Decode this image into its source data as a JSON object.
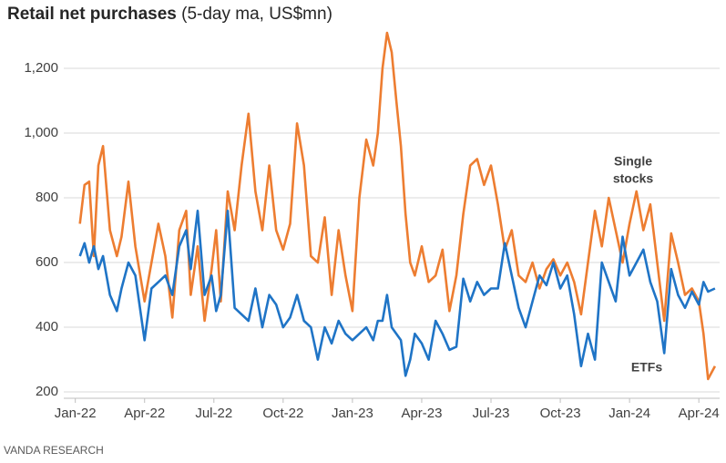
{
  "chart_data": {
    "type": "line",
    "title": "Retail net purchases",
    "subtitle": "(5-day ma, US$mn)",
    "source": "VANDA RESEARCH",
    "xlim": [
      -0.5,
      27.9
    ],
    "xticks": [
      {
        "value": 0,
        "label": "Jan-22"
      },
      {
        "value": 3,
        "label": "Apr-22"
      },
      {
        "value": 6,
        "label": "Jul-22"
      },
      {
        "value": 9,
        "label": "Oct-22"
      },
      {
        "value": 12,
        "label": "Jan-23"
      },
      {
        "value": 15,
        "label": "Apr-23"
      },
      {
        "value": 18,
        "label": "Jul-23"
      },
      {
        "value": 21,
        "label": "Oct-23"
      },
      {
        "value": 24,
        "label": "Jan-24"
      },
      {
        "value": 27,
        "label": "Apr-24"
      }
    ],
    "ylim": [
      172,
      1341
    ],
    "yticks": [
      200,
      400,
      600,
      800,
      {
        "value": 1000,
        "label": "1,000"
      },
      {
        "value": 1200,
        "label": "1,200"
      }
    ],
    "grid": true,
    "x": [
      0.2,
      0.4,
      0.6,
      0.8,
      1.0,
      1.2,
      1.5,
      1.8,
      2.0,
      2.3,
      2.6,
      3.0,
      3.3,
      3.6,
      3.9,
      4.2,
      4.5,
      4.8,
      5.0,
      5.3,
      5.6,
      5.9,
      6.1,
      6.3,
      6.6,
      6.9,
      7.2,
      7.5,
      7.8,
      8.1,
      8.4,
      8.7,
      9.0,
      9.3,
      9.6,
      9.9,
      10.2,
      10.5,
      10.8,
      11.1,
      11.4,
      11.7,
      12.0,
      12.3,
      12.6,
      12.9,
      13.1,
      13.3,
      13.5,
      13.7,
      13.9,
      14.1,
      14.3,
      14.5,
      14.7,
      15.0,
      15.3,
      15.6,
      15.9,
      16.2,
      16.5,
      16.8,
      17.1,
      17.4,
      17.7,
      18.0,
      18.3,
      18.6,
      18.9,
      19.2,
      19.5,
      19.8,
      20.1,
      20.4,
      20.7,
      21.0,
      21.3,
      21.6,
      21.9,
      22.2,
      22.5,
      22.8,
      23.1,
      23.4,
      23.7,
      24.0,
      24.3,
      24.6,
      24.9,
      25.2,
      25.5,
      25.8,
      26.1,
      26.4,
      26.7,
      27.0,
      27.2,
      27.4,
      27.7
    ],
    "series": [
      {
        "name": "Single stocks",
        "color": "#ed7d31",
        "values": [
          720,
          840,
          850,
          620,
          900,
          960,
          700,
          620,
          680,
          850,
          650,
          480,
          600,
          720,
          620,
          430,
          700,
          760,
          500,
          650,
          420,
          580,
          700,
          480,
          820,
          700,
          900,
          1060,
          820,
          700,
          900,
          700,
          640,
          720,
          1030,
          900,
          620,
          600,
          740,
          500,
          700,
          560,
          450,
          800,
          980,
          900,
          1000,
          1200,
          1310,
          1250,
          1100,
          960,
          750,
          600,
          560,
          650,
          540,
          560,
          640,
          450,
          560,
          750,
          900,
          920,
          840,
          900,
          780,
          640,
          700,
          560,
          540,
          600,
          520,
          580,
          610,
          560,
          600,
          540,
          440,
          600,
          760,
          650,
          800,
          700,
          600,
          720,
          820,
          700,
          780,
          600,
          420,
          690,
          600,
          500,
          520,
          480,
          380,
          240,
          280
        ]
      },
      {
        "name": "ETFs",
        "color": "#1f74c6",
        "values": [
          620,
          660,
          600,
          650,
          580,
          620,
          500,
          450,
          520,
          600,
          560,
          360,
          520,
          540,
          560,
          500,
          650,
          700,
          580,
          760,
          500,
          560,
          450,
          500,
          760,
          460,
          440,
          420,
          520,
          400,
          500,
          470,
          400,
          430,
          500,
          420,
          400,
          300,
          400,
          350,
          420,
          380,
          360,
          380,
          400,
          360,
          420,
          420,
          500,
          400,
          380,
          360,
          250,
          300,
          380,
          350,
          300,
          420,
          380,
          330,
          340,
          550,
          480,
          540,
          500,
          520,
          520,
          660,
          560,
          460,
          400,
          480,
          560,
          530,
          600,
          520,
          560,
          440,
          280,
          380,
          300,
          600,
          540,
          480,
          680,
          560,
          600,
          640,
          540,
          480,
          320,
          580,
          500,
          460,
          510,
          470,
          540,
          510,
          520
        ]
      }
    ],
    "annotations": [
      {
        "lines": [
          "Single",
          "stocks"
        ],
        "color": "#ed7d31"
      },
      {
        "lines": [
          "ETFs"
        ],
        "color": "#1f74c6"
      }
    ]
  }
}
